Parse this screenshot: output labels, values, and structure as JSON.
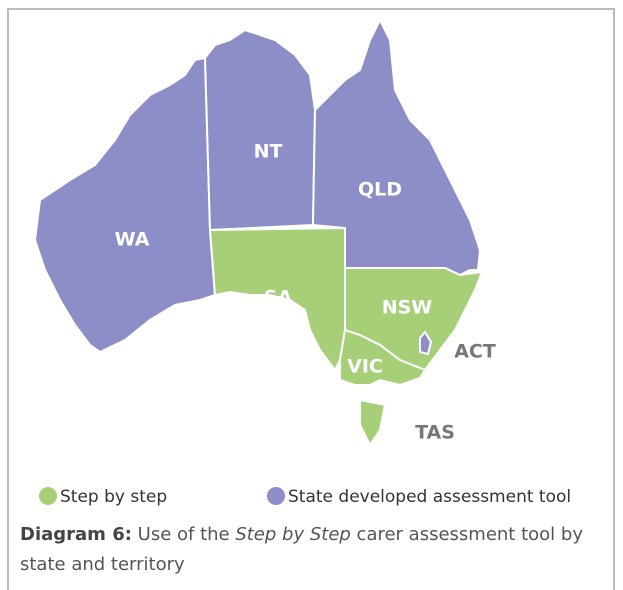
{
  "map": {
    "regions": [
      {
        "label": "WA",
        "group": 1
      },
      {
        "label": "NT",
        "group": 1
      },
      {
        "label": "QLD",
        "group": 1
      },
      {
        "label": "SA",
        "group": 0
      },
      {
        "label": "NSW",
        "group": 0
      },
      {
        "label": "VIC",
        "group": 0
      },
      {
        "label": "TAS",
        "group": 0
      },
      {
        "label": "ACT",
        "group": 1
      }
    ],
    "legend": [
      {
        "label": "Step by step",
        "color": "#a6cf78"
      },
      {
        "label": "State developed assessment tool",
        "color": "#8d8dc8"
      }
    ]
  },
  "caption": {
    "bold": "Diagram 6:",
    "text1": " Use of the ",
    "italic": "Step by Step",
    "text2": " carer assessment tool by state and territory"
  }
}
